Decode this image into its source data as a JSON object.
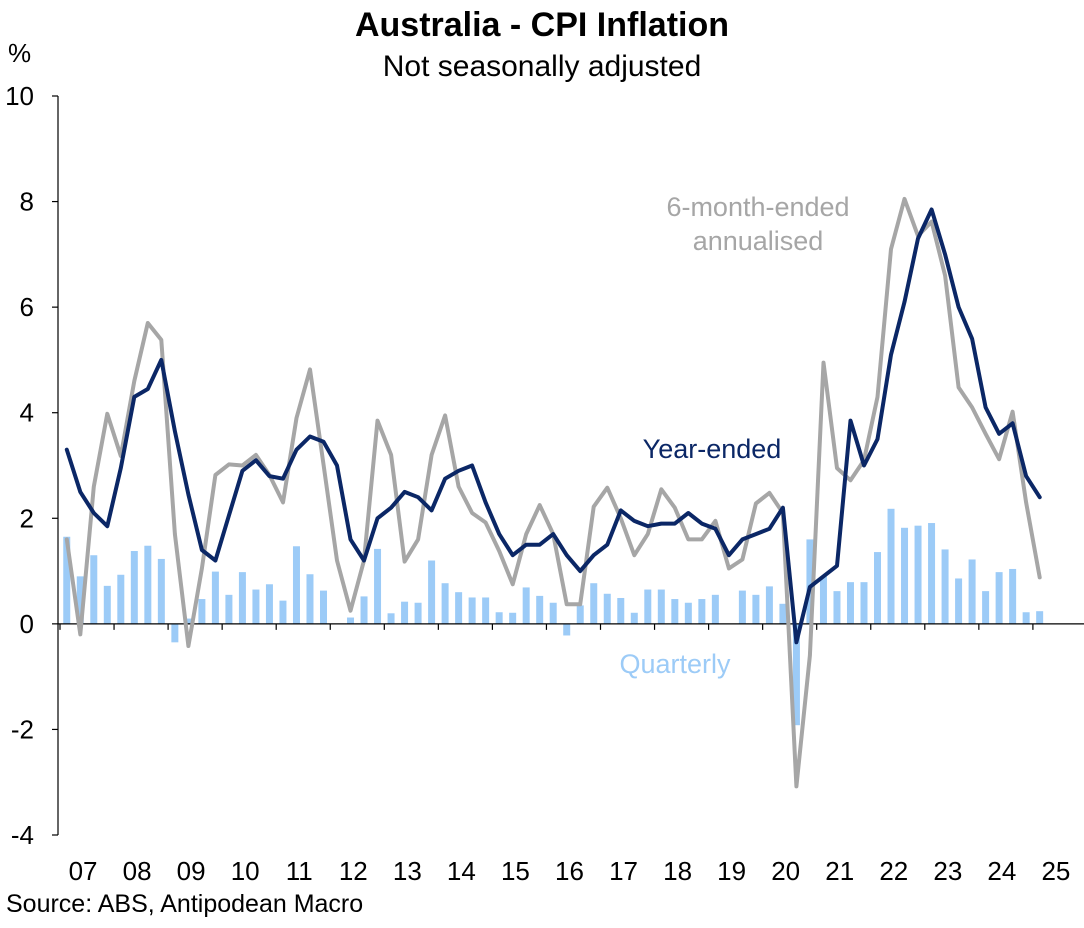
{
  "header": {
    "title": "Australia - CPI Inflation",
    "subtitle": "Not seasonally adjusted",
    "unit": "%"
  },
  "footer": {
    "source": "Source: ABS, Antipodean Macro"
  },
  "chart_data": {
    "type": "line",
    "title": "Australia - CPI Inflation",
    "subtitle": "Not seasonally adjusted",
    "ylabel": "%",
    "ylim": [
      -4,
      10
    ],
    "yticks": [
      -4,
      -2,
      0,
      2,
      4,
      6,
      8,
      10
    ],
    "xticks": [
      "07",
      "08",
      "09",
      "10",
      "11",
      "12",
      "13",
      "14",
      "15",
      "16",
      "17",
      "18",
      "19",
      "20",
      "21",
      "22",
      "23",
      "24",
      "25"
    ],
    "x_start": "2007 Q1",
    "frequency": "quarterly",
    "grid": false,
    "colors": {
      "year_ended": "#0b2766",
      "six_month": "#a6a6a6",
      "quarterly": "#9ccbf7"
    },
    "annotations": [
      {
        "series": "six_month",
        "text": [
          "6-month-ended",
          "annualised"
        ]
      },
      {
        "series": "year_ended",
        "text": [
          "Year-ended"
        ]
      },
      {
        "series": "quarterly",
        "text": [
          "Quarterly"
        ]
      }
    ],
    "series": [
      {
        "id": "quarterly",
        "type": "bar",
        "values": [
          1.65,
          0.9,
          1.3,
          0.72,
          0.93,
          1.38,
          1.48,
          1.23,
          -0.35,
          0.1,
          0.47,
          0.99,
          0.55,
          0.98,
          0.65,
          0.75,
          0.44,
          1.47,
          0.94,
          0.63,
          0.0,
          0.12,
          0.52,
          1.42,
          0.2,
          0.42,
          0.4,
          1.2,
          0.77,
          0.6,
          0.5,
          0.5,
          0.22,
          0.21,
          0.69,
          0.53,
          0.4,
          -0.22,
          0.35,
          0.77,
          0.57,
          0.49,
          0.21,
          0.65,
          0.65,
          0.47,
          0.4,
          0.47,
          0.55,
          0.0,
          0.63,
          0.55,
          0.71,
          0.38,
          -1.92,
          1.6,
          0.9,
          0.62,
          0.79,
          0.79,
          1.36,
          2.18,
          1.82,
          1.86,
          1.91,
          1.41,
          0.86,
          1.22,
          0.62,
          0.98,
          1.04,
          0.22,
          0.24
        ]
      },
      {
        "id": "six_month",
        "type": "line",
        "values": [
          1.6,
          -0.2,
          2.6,
          3.98,
          3.18,
          4.6,
          5.7,
          5.38,
          1.7,
          -0.42,
          1.05,
          2.82,
          3.02,
          3.0,
          3.2,
          2.82,
          2.3,
          3.9,
          4.82,
          3.02,
          1.2,
          0.25,
          1.2,
          3.85,
          3.2,
          1.18,
          1.6,
          3.2,
          3.95,
          2.6,
          2.1,
          1.92,
          1.38,
          0.75,
          1.7,
          2.25,
          1.7,
          0.37,
          0.37,
          2.22,
          2.58,
          2.0,
          1.3,
          1.7,
          2.55,
          2.2,
          1.6,
          1.6,
          1.95,
          1.05,
          1.22,
          2.28,
          2.48,
          2.1,
          -3.08,
          -0.6,
          4.95,
          2.95,
          2.72,
          3.1,
          4.3,
          7.1,
          8.05,
          7.35,
          7.62,
          6.6,
          4.48,
          4.1,
          3.6,
          3.12,
          4.02,
          2.3,
          0.88
        ]
      },
      {
        "id": "year_ended",
        "type": "line",
        "values": [
          3.3,
          2.5,
          2.1,
          1.85,
          2.95,
          4.3,
          4.45,
          5.0,
          3.65,
          2.45,
          1.4,
          1.2,
          2.05,
          2.9,
          3.1,
          2.8,
          2.75,
          3.3,
          3.55,
          3.45,
          3.0,
          1.6,
          1.2,
          2.0,
          2.2,
          2.5,
          2.4,
          2.15,
          2.75,
          2.9,
          3.0,
          2.3,
          1.7,
          1.3,
          1.5,
          1.5,
          1.7,
          1.3,
          1.0,
          1.3,
          1.5,
          2.15,
          1.95,
          1.85,
          1.9,
          1.9,
          2.1,
          1.9,
          1.8,
          1.3,
          1.6,
          1.7,
          1.8,
          2.2,
          -0.35,
          0.7,
          0.9,
          1.1,
          3.85,
          3.0,
          3.5,
          5.1,
          6.1,
          7.3,
          7.85,
          7.0,
          6.0,
          5.4,
          4.1,
          3.6,
          3.8,
          2.8,
          2.4
        ]
      }
    ]
  }
}
